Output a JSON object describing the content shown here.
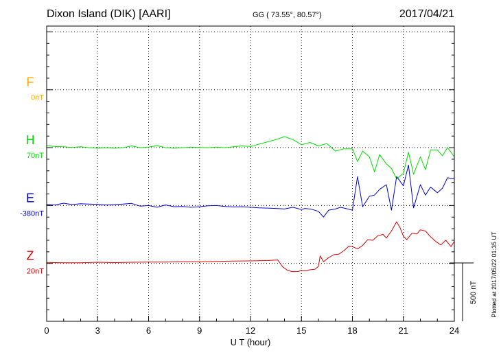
{
  "header": {
    "station": "Dixon Island (DIK)  [AARI]",
    "coords": "GG ( 73.55°,  80.57°)",
    "date": "2017/04/21"
  },
  "footer": {
    "plotted": "Plotted at 2017/05/22 01:35 UT"
  },
  "colors": {
    "F": "#ffa500",
    "H": "#00dd00",
    "E": "#0000cc",
    "Z": "#dd0000"
  },
  "chart_data": {
    "type": "line",
    "title": "Dixon Island (DIK)  [AARI]",
    "xlabel": "U T (hour)",
    "ylabel": "",
    "xlim": [
      0,
      24
    ],
    "xticks": [
      0,
      3,
      6,
      9,
      12,
      15,
      18,
      21,
      24
    ],
    "scale_bar": {
      "label": "500 nT",
      "value_nT": 500
    },
    "channel_levels_nT": [
      0,
      500,
      1000,
      1500,
      2000,
      2500
    ],
    "grid": true,
    "series": [
      {
        "name": "F",
        "offset_label": "0nT",
        "baseline_nT": 2000,
        "x": [],
        "y": []
      },
      {
        "name": "H",
        "offset_label": "70nT",
        "baseline_nT": 1500,
        "x": [
          0,
          0.5,
          1,
          1.5,
          2,
          2.5,
          3,
          3.5,
          4,
          4.5,
          5,
          5.5,
          6,
          6.5,
          7,
          7.5,
          8,
          8.5,
          9,
          9.5,
          10,
          10.5,
          11,
          11.5,
          12,
          12.5,
          13,
          13.5,
          14,
          14.5,
          15,
          15.5,
          16,
          16.5,
          17,
          17.5,
          18,
          18.3,
          18.6,
          19,
          19.3,
          19.6,
          20,
          20.3,
          20.6,
          21,
          21.3,
          21.6,
          22,
          22.3,
          22.6,
          23,
          23.3,
          23.6,
          24
        ],
        "y": [
          1518,
          1510,
          1508,
          1502,
          1508,
          1500,
          1495,
          1498,
          1495,
          1500,
          1515,
          1500,
          1505,
          1518,
          1500,
          1495,
          1500,
          1505,
          1502,
          1500,
          1505,
          1500,
          1508,
          1515,
          1510,
          1530,
          1550,
          1570,
          1595,
          1570,
          1525,
          1545,
          1515,
          1535,
          1470,
          1490,
          1490,
          1380,
          1470,
          1420,
          1290,
          1440,
          1360,
          1320,
          1230,
          1280,
          1460,
          1270,
          1420,
          1310,
          1480,
          1480,
          1430,
          1500,
          1420
        ]
      },
      {
        "name": "E",
        "offset_label": "-380nT",
        "baseline_nT": 1000,
        "x": [
          0,
          0.5,
          1,
          1.5,
          2,
          2.5,
          3,
          3.5,
          4,
          4.5,
          5,
          5.5,
          6,
          6.5,
          7,
          7.5,
          8,
          8.5,
          9,
          9.5,
          10,
          10.5,
          11,
          11.5,
          12,
          12.5,
          13,
          13.5,
          14,
          14.5,
          15,
          15.2,
          15.6,
          16,
          16.3,
          16.6,
          17,
          17.3,
          17.6,
          18,
          18.3,
          18.6,
          19,
          19.3,
          19.6,
          20,
          20.3,
          20.6,
          21,
          21.3,
          21.6,
          22,
          22.3,
          22.6,
          23,
          23.3,
          23.6,
          24
        ],
        "y": [
          1010,
          1005,
          1020,
          1008,
          1015,
          1012,
          1010,
          1005,
          1008,
          1012,
          1018,
          995,
          1000,
          985,
          1005,
          990,
          992,
          985,
          990,
          998,
          1000,
          992,
          988,
          990,
          985,
          980,
          978,
          975,
          970,
          985,
          965,
          975,
          968,
          950,
          900,
          960,
          970,
          985,
          975,
          960,
          1250,
          990,
          1080,
          1090,
          1140,
          1180,
          960,
          1250,
          1170,
          1350,
          980,
          1180,
          1090,
          1160,
          1110,
          1150,
          1240,
          1230
        ]
      },
      {
        "name": "Z",
        "offset_label": "20nT",
        "baseline_nT": 500,
        "x": [
          0,
          1,
          2,
          3,
          4,
          5,
          6,
          7,
          8,
          9,
          10,
          11,
          12,
          13,
          13.6,
          13.9,
          14.2,
          14.5,
          14.8,
          15,
          15.2,
          15.5,
          15.8,
          16,
          16.1,
          16.3,
          16.6,
          16.9,
          17.2,
          17.5,
          17.8,
          18,
          18.3,
          18.6,
          18.9,
          19.2,
          19.5,
          19.8,
          20,
          20.3,
          20.6,
          20.8,
          21,
          21.2,
          21.5,
          21.8,
          22,
          22.3,
          22.6,
          22.9,
          23.2,
          23.5,
          23.8,
          24
        ],
        "y": [
          508,
          505,
          505,
          510,
          507,
          510,
          512,
          512,
          514,
          515,
          518,
          520,
          522,
          525,
          530,
          470,
          438,
          428,
          430,
          440,
          435,
          445,
          450,
          475,
          565,
          515,
          550,
          575,
          580,
          610,
          650,
          645,
          625,
          655,
          705,
          700,
          740,
          750,
          720,
          780,
          860,
          810,
          735,
          705,
          760,
          755,
          790,
          780,
          730,
          690,
          660,
          700,
          645,
          690
        ]
      }
    ]
  }
}
